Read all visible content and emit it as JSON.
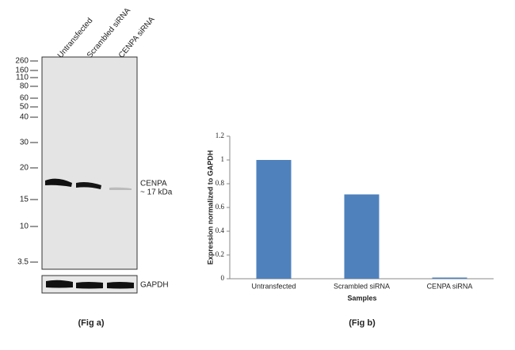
{
  "blot": {
    "lanes": [
      "Untransfected",
      "Scrambled siRNA",
      "CENPA siRNA"
    ],
    "markers": [
      260,
      160,
      110,
      80,
      60,
      50,
      40,
      30,
      20,
      15,
      10,
      3.5
    ],
    "band_label": "CENPA",
    "band_size": "~ 17 kDa",
    "loading_control": "GAPDH",
    "caption": "(Fig a)"
  },
  "chart_data": {
    "type": "bar",
    "categories": [
      "Untransfected",
      "Scrambled siRNA",
      "CENPA siRNA"
    ],
    "values": [
      1,
      0.71,
      0.01
    ],
    "color": "#4f81bd",
    "ylabel": "Expression  normalized to GAPDH",
    "xlabel": "Samples",
    "caption": "(Fig b)",
    "ylim": [
      0,
      1.2
    ],
    "yticks": [
      0,
      0.2,
      0.4,
      0.6,
      0.8,
      1,
      1.2
    ],
    "grid": false
  }
}
